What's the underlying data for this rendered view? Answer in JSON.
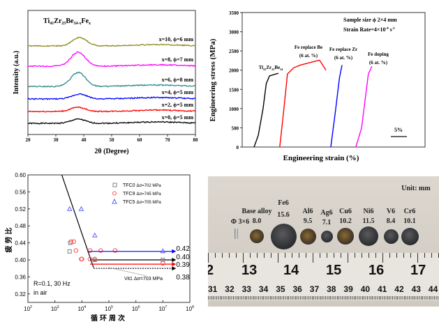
{
  "chart_data": [
    {
      "type": "line",
      "title": "Ti41Zr25Be34-xFex",
      "title_parts": [
        "Ti",
        "41",
        "Zr",
        "25",
        "Be",
        "34-x",
        "Fe",
        "x"
      ],
      "xlabel": "2θ (Degree)",
      "ylabel": "Intensity (a.u.)",
      "xlim": [
        20,
        80
      ],
      "xticks": [
        20,
        30,
        40,
        50,
        60,
        70,
        80
      ],
      "series": [
        {
          "name": "x=0, ϕ=5 mm",
          "color": "#000000",
          "peak": 38,
          "peak_height": 0.3
        },
        {
          "name": "x=2, ϕ=5 mm",
          "color": "#ff0000",
          "peak": 38,
          "peak_height": 0.3
        },
        {
          "name": "x=4, ϕ=5 mm",
          "color": "#0000ff",
          "peak": 38.5,
          "peak_height": 0.35
        },
        {
          "name": "x=6, ϕ=8 mm",
          "color": "#2a8a8a",
          "peak": 38,
          "peak_height": 1.0
        },
        {
          "name": "x=8, ϕ=7 mm",
          "color": "#ff00ff",
          "peak": 38,
          "peak_height": 1.0
        },
        {
          "name": "x=10, ϕ=6 mm",
          "color": "#8c8c1e",
          "peak": 38.5,
          "peak_height": 0.6
        }
      ]
    },
    {
      "type": "line",
      "xlabel": "Engineering strain (%)",
      "ylabel": "Engineering stress (MPa)",
      "ylim": [
        0,
        3500
      ],
      "yticks": [
        0,
        500,
        1000,
        1500,
        2000,
        2500,
        3000,
        3500
      ],
      "annotations": {
        "sample": "Sample size  ϕ 2×4 mm",
        "rate": "Strain Rate=4×10",
        "rate_exp": "-4",
        "rate_unit": " s",
        "rate_unit_exp": "-1",
        "scale": "5%"
      },
      "series": [
        {
          "name": "Ti41Zr25Be34",
          "label_parts": [
            "Ti",
            "41",
            "Zr",
            "25",
            "Be",
            "34"
          ],
          "color": "#000000",
          "points": [
            [
              3.7,
              0
            ],
            [
              5,
              300
            ],
            [
              6.5,
              1000
            ],
            [
              7.5,
              1650
            ],
            [
              8.5,
              1850
            ],
            [
              11.3,
              1920
            ]
          ]
        },
        {
          "name": "Fe replace Be",
          "sub": "(6 at. %)",
          "color": "#ff0000",
          "points": [
            [
              11.7,
              0
            ],
            [
              13,
              1000
            ],
            [
              14.1,
              1900
            ],
            [
              16,
              2060
            ],
            [
              18,
              2130
            ],
            [
              23.5,
              2250
            ],
            [
              24.1,
              2260
            ],
            [
              26.1,
              2000
            ]
          ]
        },
        {
          "name": "Fe replace Zr",
          "sub": "(6 at. %)",
          "color": "#0000ff",
          "points": [
            [
              27.6,
              0
            ],
            [
              29,
              900
            ],
            [
              30.3,
              1800
            ],
            [
              31.1,
              2130
            ]
          ]
        },
        {
          "name": "Fe doping",
          "sub": "(6 at. %)",
          "color": "#ff00ff",
          "points": [
            [
              35.4,
              0
            ],
            [
              37.2,
              500
            ],
            [
              38.4,
              1300
            ],
            [
              39.3,
              1900
            ],
            [
              40.4,
              2100
            ]
          ]
        }
      ]
    },
    {
      "type": "scatter",
      "xlabel": "循环周次",
      "ylabel": "疲劳比",
      "xscale": "log",
      "xlim": [
        100,
        100000000
      ],
      "ylim": [
        0.3,
        0.6
      ],
      "yticks": [
        0.32,
        0.36,
        0.4,
        0.44,
        0.48,
        0.52,
        0.56,
        0.6
      ],
      "xtick_exps": [
        2,
        3,
        4,
        5,
        6,
        7,
        8
      ],
      "legend": "top-right",
      "conditions": [
        "R=0.1, 30 Hz",
        "in air"
      ],
      "series": [
        {
          "name": "TFC0",
          "stress": "Δσ=702 MPa",
          "color": "#808080",
          "marker": "square",
          "points": [
            [
              3500,
              0.42
            ],
            [
              3700,
              0.44
            ],
            [
              30000,
              0.4
            ],
            [
              10000000,
              0.4
            ]
          ],
          "endurance": 0.4,
          "endurance_label": "0.40",
          "line_color": "#000000"
        },
        {
          "name": "TFC9",
          "stress": "Δσ=745 MPa",
          "color": "#ff5050",
          "marker": "circle",
          "points": [
            [
              4000,
              0.443
            ],
            [
              5000,
              0.443
            ],
            [
              6000,
              0.422
            ],
            [
              9500,
              0.402
            ],
            [
              10000,
              0.402
            ],
            [
              20000,
              0.422
            ],
            [
              20000,
              0.402
            ],
            [
              30000,
              0.402
            ],
            [
              50000,
              0.422
            ],
            [
              170000,
              0.422
            ],
            [
              10000000,
              0.392
            ]
          ],
          "endurance": 0.39,
          "endurance_label": "0.39",
          "line_color": "#ff0000"
        },
        {
          "name": "TFC5",
          "stress": "Δσ=705 MPa",
          "color": "#6060ff",
          "marker": "triangle",
          "points": [
            [
              3500,
              0.52
            ],
            [
              9500,
              0.52
            ],
            [
              30000,
              0.458
            ],
            [
              10000000,
              0.421
            ]
          ],
          "endurance": 0.42,
          "endurance_label": "0.42",
          "line_color": "#0000ff"
        },
        {
          "name": "Vit1",
          "stress": "Δσ=703 MPa",
          "label": "Vit1 Δσ=703 MPa",
          "endurance": 0.38,
          "endurance_label": "0.38",
          "line_color": "#000000",
          "dashed": true
        }
      ],
      "trend_line": [
        [
          1800,
          0.6
        ],
        [
          27000,
          0.382
        ]
      ]
    },
    {
      "type": "photo",
      "unit": "Unit:  mm",
      "rod": "Φ 3×6",
      "samples": [
        {
          "name": "Base alloy",
          "d": "8.0"
        },
        {
          "name": "Fe6",
          "d": "15.6"
        },
        {
          "name": "Al6",
          "d": "9.5"
        },
        {
          "name": "Ag6",
          "d": "7.1"
        },
        {
          "name": "Cu6",
          "d": "10.2"
        },
        {
          "name": "Ni6",
          "d": "11.5"
        },
        {
          "name": "V6",
          "d": "8.4"
        },
        {
          "name": "Cr6",
          "d": "10.1"
        }
      ],
      "ruler_cm": [
        "2",
        "13",
        "14",
        "15",
        "16",
        "17"
      ],
      "ruler_inch": [
        "31",
        "32",
        "33",
        "34",
        "35",
        "36",
        "37",
        "38",
        "39",
        "40",
        "41",
        "42",
        "43",
        "44"
      ]
    }
  ]
}
